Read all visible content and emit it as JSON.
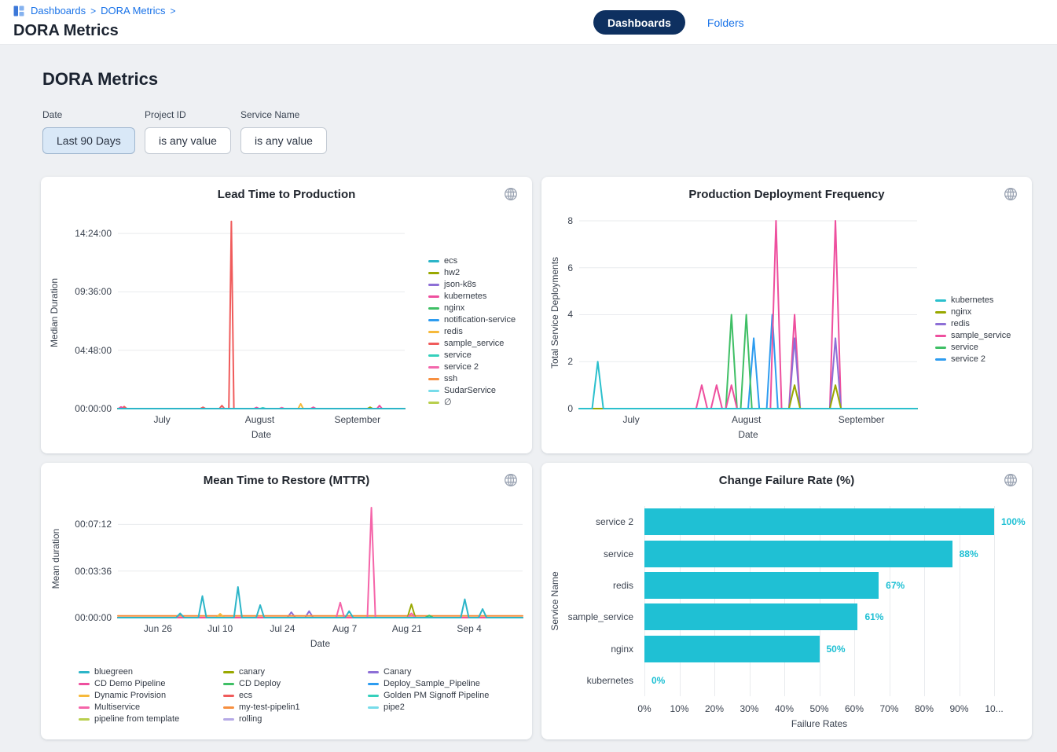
{
  "page": {
    "background": "#eef0f3",
    "card_background": "#ffffff"
  },
  "header": {
    "breadcrumb": {
      "icon": "dashboard-grid-icon",
      "items": [
        "Dashboards",
        "DORA Metrics"
      ],
      "separator": ">"
    },
    "title": "DORA Metrics",
    "tabs": [
      {
        "label": "Dashboards",
        "active": true
      },
      {
        "label": "Folders",
        "active": false
      }
    ],
    "active_tab_color": "#0e3060",
    "link_color": "#1a73e8"
  },
  "main": {
    "heading": "DORA Metrics",
    "filters": [
      {
        "label": "Date",
        "value": "Last 90 Days",
        "highlighted": true
      },
      {
        "label": "Project ID",
        "value": "is any value",
        "highlighted": false
      },
      {
        "label": "Service Name",
        "value": "is any value",
        "highlighted": false
      }
    ]
  },
  "chart_data": [
    {
      "type": "line",
      "title": "Lead Time to Production",
      "xlabel": "Date",
      "ylabel": "Median Duration",
      "x_unit": "days in Last-90-Days window (~Jun 17 - Sep 16)",
      "y_unit": "seconds shown as hh:mm:ss",
      "xlim": [
        0,
        91
      ],
      "ylim": [
        0,
        57000
      ],
      "grid": "horizontal",
      "legend_position": "right",
      "x_ticks": [
        {
          "label": "July",
          "x": 14
        },
        {
          "label": "August",
          "x": 45
        },
        {
          "label": "September",
          "x": 76
        }
      ],
      "y_ticks": [
        {
          "label": "00:00:00",
          "y": 0
        },
        {
          "label": "04:48:00",
          "y": 17280
        },
        {
          "label": "09:36:00",
          "y": 34560
        },
        {
          "label": "14:24:00",
          "y": 51840
        }
      ],
      "spike_halfwidth_days": 0.8,
      "series": [
        {
          "name": "ecs",
          "color": "#2cb5c8",
          "spikes": []
        },
        {
          "name": "hw2",
          "color": "#99a800",
          "spikes": [
            [
              80,
              400
            ]
          ]
        },
        {
          "name": "json-k8s",
          "color": "#8d6fd6",
          "spikes": []
        },
        {
          "name": "kubernetes",
          "color": "#ee4f9e",
          "spikes": [
            [
              1,
              500
            ],
            [
              44,
              350
            ],
            [
              62,
              400
            ],
            [
              83,
              900
            ]
          ]
        },
        {
          "name": "nginx",
          "color": "#3fbf65",
          "spikes": []
        },
        {
          "name": "notification-service",
          "color": "#2d9cf0",
          "spikes": []
        },
        {
          "name": "redis",
          "color": "#f6b93b",
          "spikes": [
            [
              58,
              1400
            ]
          ]
        },
        {
          "name": "sample_service",
          "color": "#f05b5b",
          "spikes": [
            [
              2,
              600
            ],
            [
              27,
              400
            ],
            [
              33,
              900
            ],
            [
              36,
              55440
            ]
          ]
        },
        {
          "name": "service",
          "color": "#35d0bc",
          "spikes": [
            [
              46,
              250
            ]
          ]
        },
        {
          "name": "service 2",
          "color": "#f367ac",
          "spikes": [
            [
              52,
              300
            ]
          ]
        },
        {
          "name": "ssh",
          "color": "#f78f3f",
          "spikes": []
        },
        {
          "name": "SudarService",
          "color": "#77dcea",
          "spikes": []
        },
        {
          "name": "∅",
          "color": "#b9cf4e",
          "spikes": []
        }
      ]
    },
    {
      "type": "line",
      "title": "Production Deployment Frequency",
      "xlabel": "Date",
      "ylabel": "Total Service Deployments",
      "x_unit": "days in Last-90-Days window (~Jun 17 - Sep 16)",
      "y_unit": "deployments",
      "xlim": [
        0,
        91
      ],
      "ylim": [
        0,
        8.2
      ],
      "grid": "horizontal",
      "legend_position": "right",
      "x_ticks": [
        {
          "label": "July",
          "x": 14
        },
        {
          "label": "August",
          "x": 45
        },
        {
          "label": "September",
          "x": 76
        }
      ],
      "y_ticks": [
        {
          "label": "0",
          "y": 0
        },
        {
          "label": "2",
          "y": 2
        },
        {
          "label": "4",
          "y": 4
        },
        {
          "label": "6",
          "y": 6
        },
        {
          "label": "8",
          "y": 8
        }
      ],
      "spike_halfwidth_days": 1.5,
      "series": [
        {
          "name": "kubernetes",
          "color": "#2bc0cd",
          "spikes": [
            [
              5,
              2
            ]
          ]
        },
        {
          "name": "nginx",
          "color": "#99a800",
          "spikes": [
            [
              58,
              1
            ],
            [
              69,
              1
            ]
          ]
        },
        {
          "name": "redis",
          "color": "#8d6fd6",
          "spikes": [
            [
              58,
              3
            ],
            [
              69,
              3
            ]
          ]
        },
        {
          "name": "sample_service",
          "color": "#ee4f9e",
          "spikes": [
            [
              33,
              1
            ],
            [
              37,
              1
            ],
            [
              41,
              1
            ],
            [
              53,
              8
            ],
            [
              58,
              4
            ],
            [
              69,
              8
            ]
          ]
        },
        {
          "name": "service",
          "color": "#3fbf65",
          "spikes": [
            [
              41,
              4
            ],
            [
              45,
              4
            ]
          ]
        },
        {
          "name": "service 2",
          "color": "#2d9cf0",
          "spikes": [
            [
              47,
              3
            ],
            [
              52,
              4
            ]
          ]
        }
      ]
    },
    {
      "type": "line",
      "title": "Mean Time to Restore (MTTR)",
      "xlabel": "Date",
      "ylabel": "Mean duration",
      "x_unit": "days in Last-90-Days window (~Jun 17 - Sep 16)",
      "y_unit": "seconds shown as hh:mm:ss",
      "xlim": [
        0,
        91
      ],
      "ylim": [
        0,
        550
      ],
      "grid": "horizontal",
      "legend_position": "bottom",
      "legend_columns": 3,
      "x_ticks": [
        {
          "label": "Jun 26",
          "x": 9
        },
        {
          "label": "Jul 10",
          "x": 23
        },
        {
          "label": "Jul 24",
          "x": 37
        },
        {
          "label": "Aug 7",
          "x": 51
        },
        {
          "label": "Aug 21",
          "x": 65
        },
        {
          "label": "Sep 4",
          "x": 79
        }
      ],
      "y_ticks": [
        {
          "label": "00:00:00",
          "y": 0
        },
        {
          "label": "00:03:36",
          "y": 216
        },
        {
          "label": "00:07:12",
          "y": 432
        }
      ],
      "spike_halfwidth_days": 0.9,
      "series": [
        {
          "name": "bluegreen",
          "color": "#2cb5c8",
          "spikes": [
            [
              14,
              20
            ],
            [
              19,
              100
            ],
            [
              27,
              142
            ],
            [
              32,
              58
            ],
            [
              52,
              30
            ],
            [
              78,
              85
            ],
            [
              82,
              40
            ]
          ]
        },
        {
          "name": "CD Demo Pipeline",
          "color": "#ee4f9e",
          "spikes": []
        },
        {
          "name": "Dynamic Provision",
          "color": "#f6b93b",
          "spikes": [
            [
              23,
              18
            ]
          ]
        },
        {
          "name": "Multiservice",
          "color": "#f565a9",
          "spikes": [
            [
              50,
              70
            ],
            [
              57,
              510
            ],
            [
              66,
              20
            ]
          ]
        },
        {
          "name": "pipeline from template",
          "color": "#b9cf4e",
          "spikes": []
        },
        {
          "name": "canary",
          "color": "#99a800",
          "spikes": [
            [
              66,
              62
            ]
          ]
        },
        {
          "name": "CD Deploy",
          "color": "#3fbf65",
          "spikes": [
            [
              70,
              10
            ]
          ]
        },
        {
          "name": "ecs",
          "color": "#f05b5b",
          "spikes": []
        },
        {
          "name": "my-test-pipelin1",
          "color": "#f78f3f",
          "baseline": 8,
          "spikes": []
        },
        {
          "name": "rolling",
          "color": "#b5a9e6",
          "spikes": []
        },
        {
          "name": "Canary",
          "color": "#8d6fd6",
          "spikes": [
            [
              39,
              25
            ],
            [
              43,
              30
            ]
          ]
        },
        {
          "name": "Deploy_Sample_Pipeline",
          "color": "#2d9cf0",
          "spikes": [
            [
              14,
              15
            ]
          ]
        },
        {
          "name": "Golden PM Signoff Pipeline",
          "color": "#35d0bc",
          "spikes": []
        },
        {
          "name": "pipe2",
          "color": "#77dcea",
          "spikes": []
        }
      ]
    },
    {
      "type": "bar",
      "orientation": "horizontal",
      "title": "Change Failure Rate (%)",
      "xlabel": "Failure Rates",
      "ylabel": "Service Name",
      "categories": [
        "service 2",
        "service",
        "redis",
        "sample_service",
        "nginx",
        "kubernetes"
      ],
      "values": [
        100,
        88,
        67,
        61,
        50,
        0
      ],
      "value_labels": [
        "100%",
        "88%",
        "67%",
        "61%",
        "50%",
        "0%"
      ],
      "xlim": [
        0,
        100
      ],
      "grid": "vertical",
      "bar_color": "#1fc0d4",
      "value_label_color": "#1fc0d4",
      "x_ticks": [
        {
          "label": "0%",
          "x": 0
        },
        {
          "label": "10%",
          "x": 10
        },
        {
          "label": "20%",
          "x": 20
        },
        {
          "label": "30%",
          "x": 30
        },
        {
          "label": "40%",
          "x": 40
        },
        {
          "label": "50%",
          "x": 50
        },
        {
          "label": "60%",
          "x": 60
        },
        {
          "label": "70%",
          "x": 70
        },
        {
          "label": "80%",
          "x": 80
        },
        {
          "label": "90%",
          "x": 90
        },
        {
          "label": "10...",
          "x": 100
        }
      ]
    }
  ]
}
